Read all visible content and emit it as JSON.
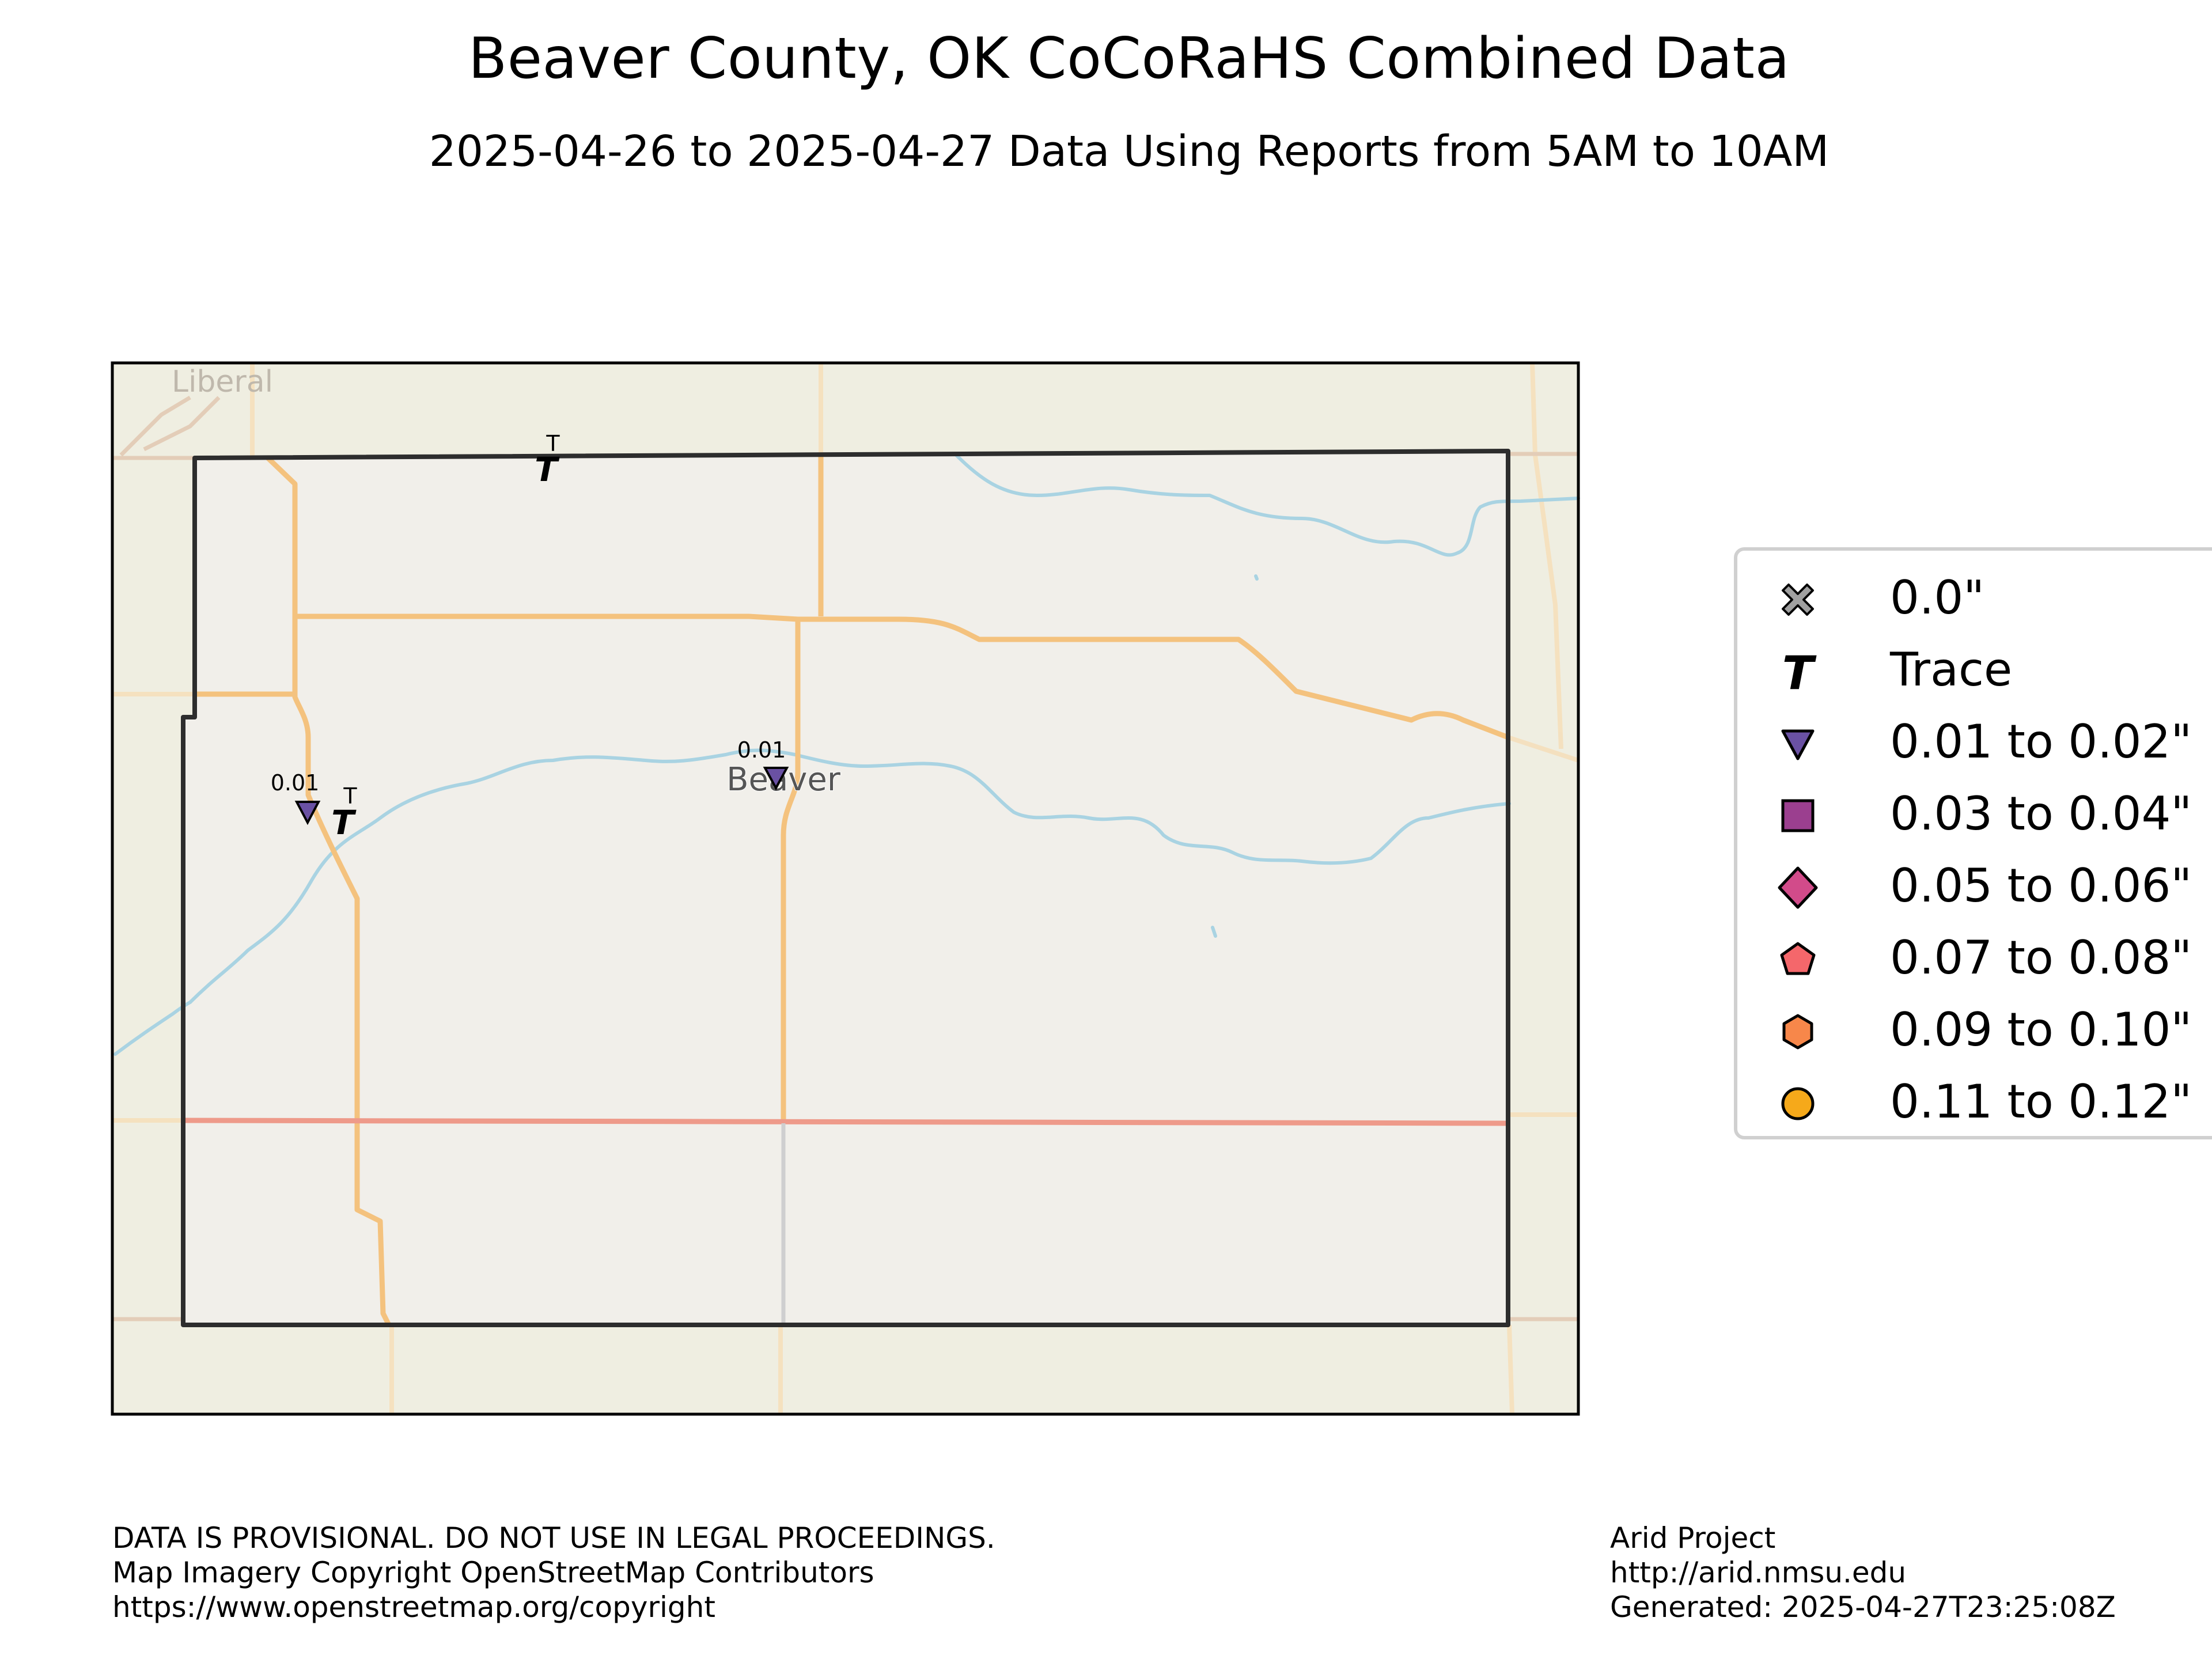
{
  "title": "Beaver County, OK CoCoRaHS Combined Data",
  "subtitle": "2025-04-26 to 2025-04-27 Data Using Reports from 5AM to 10AM",
  "map": {
    "city_labels": {
      "liberal": "Liberal",
      "beaver": "Beaver"
    },
    "stations": [
      {
        "id": "north",
        "kind": "trace",
        "label": "T"
      },
      {
        "id": "west",
        "kind": "0.01 to 0.02",
        "label": "0.01"
      },
      {
        "id": "west-trace",
        "kind": "trace",
        "label": "T"
      },
      {
        "id": "beaver",
        "kind": "0.01 to 0.02",
        "label": "0.01"
      }
    ],
    "colors": {
      "land": "#efeee1",
      "county_fill": "#f1efea",
      "county_border": "#2d2d2d",
      "road_orange": "#f4c27e",
      "road_red": "#ee9a8a",
      "river": "#a9d3e2"
    }
  },
  "legend": {
    "items": [
      {
        "label": "0.0\"",
        "icon": "x-icon",
        "color": "#a0a0a0"
      },
      {
        "label": "Trace",
        "icon": "trace-t-icon",
        "color": "#000000"
      },
      {
        "label": "0.01 to 0.02\"",
        "icon": "triangle-down-icon",
        "color": "#6a51a3"
      },
      {
        "label": "0.03 to 0.04\"",
        "icon": "square-icon",
        "color": "#9b3f8f"
      },
      {
        "label": "0.05 to 0.06\"",
        "icon": "diamond-icon",
        "color": "#d24b8a"
      },
      {
        "label": "0.07 to 0.08\"",
        "icon": "pentagon-icon",
        "color": "#f4676b"
      },
      {
        "label": "0.09 to 0.10\"",
        "icon": "hexagon-icon",
        "color": "#f7874a"
      },
      {
        "label": "0.11 to 0.12\"",
        "icon": "circle-icon",
        "color": "#f6a91a"
      }
    ]
  },
  "footer": {
    "left": [
      "DATA IS PROVISIONAL. DO NOT USE IN LEGAL PROCEEDINGS.",
      "Map Imagery Copyright OpenStreetMap Contributors",
      "https://www.openstreetmap.org/copyright"
    ],
    "right": [
      "Arid Project",
      "http://arid.nmsu.edu",
      "Generated: 2025-04-27T23:25:08Z"
    ]
  }
}
